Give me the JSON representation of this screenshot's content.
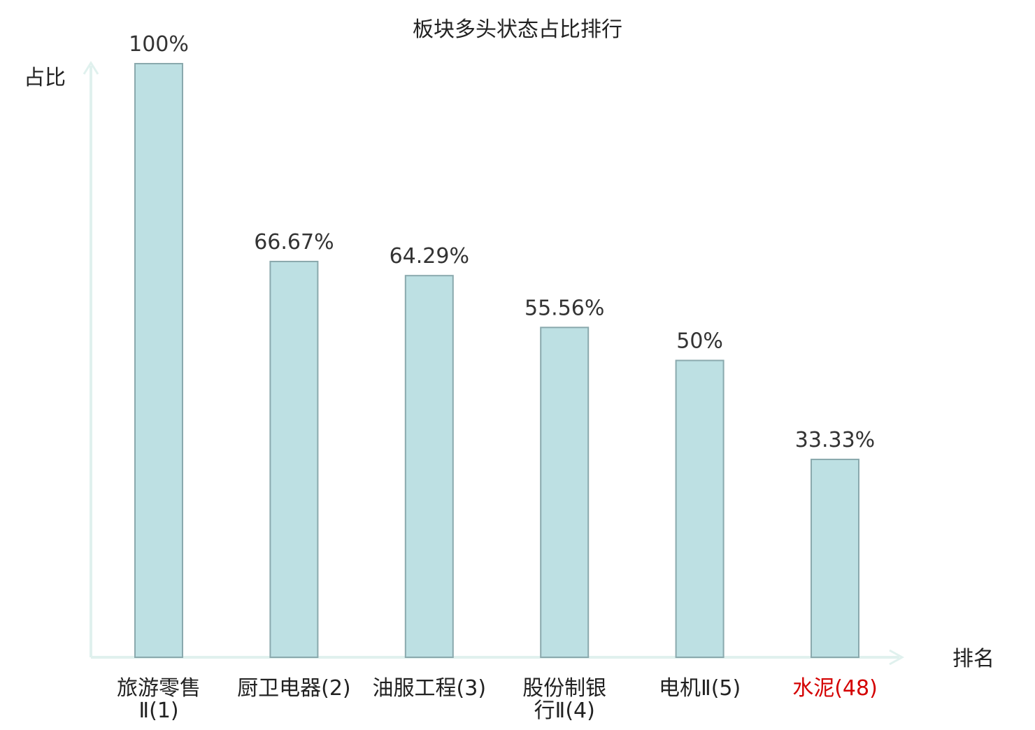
{
  "chart_data": {
    "type": "bar",
    "title": "板块多头状态占比排行",
    "xlabel": "排名",
    "ylabel": "占比",
    "ylim": [
      0,
      100
    ],
    "grid": false,
    "categories": [
      {
        "lines": [
          "旅游零售",
          "Ⅱ(1)"
        ],
        "highlight": false
      },
      {
        "lines": [
          "厨卫电器(2)"
        ],
        "highlight": false
      },
      {
        "lines": [
          "油服工程(3)"
        ],
        "highlight": false
      },
      {
        "lines": [
          "股份制银",
          "行Ⅱ(4)"
        ],
        "highlight": false
      },
      {
        "lines": [
          "电机Ⅱ(5)"
        ],
        "highlight": false
      },
      {
        "lines": [
          "水泥(48)"
        ],
        "highlight": true
      }
    ],
    "values": [
      100,
      66.67,
      64.29,
      55.56,
      50,
      33.33
    ],
    "value_labels": [
      "100%",
      "66.67%",
      "64.29%",
      "55.56%",
      "50%",
      "33.33%"
    ]
  },
  "colors": {
    "bar_fill": "#bde0e3",
    "bar_stroke": "#8aa9ad",
    "axis": "#e0f1ee",
    "text": "#222222",
    "label_text": "#333333",
    "highlight": "#d40000"
  }
}
